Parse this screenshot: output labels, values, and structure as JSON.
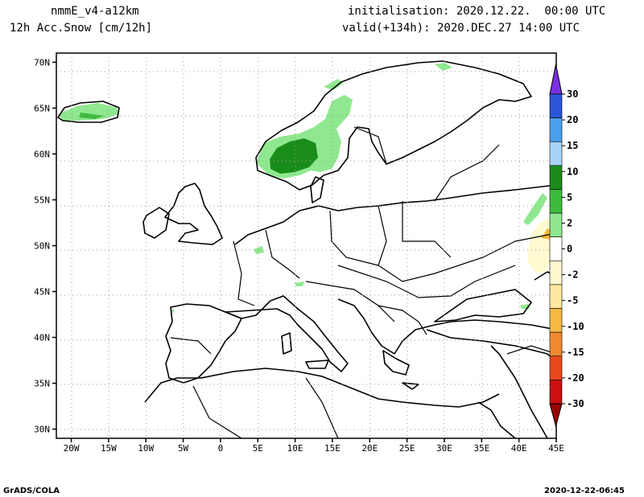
{
  "header": {
    "model": "nmmE_v4-a12km",
    "field": "12h Acc.Snow [cm/12h]",
    "init": "initialisation: 2020.12.22.  00:00 UTC",
    "valid": "valid(+134h): 2020.DEC.27 14:00 UTC"
  },
  "footer": {
    "left": "GrADS/COLA",
    "right": "2020-12-22-06:45"
  },
  "map": {
    "lon_range": [
      -22,
      45
    ],
    "lat_range": [
      29,
      71
    ],
    "lon_ticks": [
      "20W",
      "15W",
      "10W",
      "5W",
      "0",
      "5E",
      "10E",
      "15E",
      "20E",
      "25E",
      "30E",
      "35E",
      "40E",
      "45E"
    ],
    "lat_ticks": [
      "30N",
      "35N",
      "40N",
      "45N",
      "50N",
      "55N",
      "60N",
      "65N",
      "70N"
    ],
    "grid": "dotted"
  },
  "colorbar": {
    "labels": [
      "30",
      "20",
      "15",
      "10",
      "5",
      "2",
      "0",
      "-2",
      "-5",
      "-10",
      "-15",
      "-20",
      "-30"
    ],
    "colors": [
      "#7b2fe0",
      "#2a55d8",
      "#4aa0ee",
      "#a8d4f8",
      "#1a8c1a",
      "#3dbb3d",
      "#8fe88f",
      "#ffffff",
      "#fff9d0",
      "#ffe8a0",
      "#f5b942",
      "#ef8a30",
      "#e84a1c",
      "#cc1010",
      "#9a0000"
    ]
  }
}
